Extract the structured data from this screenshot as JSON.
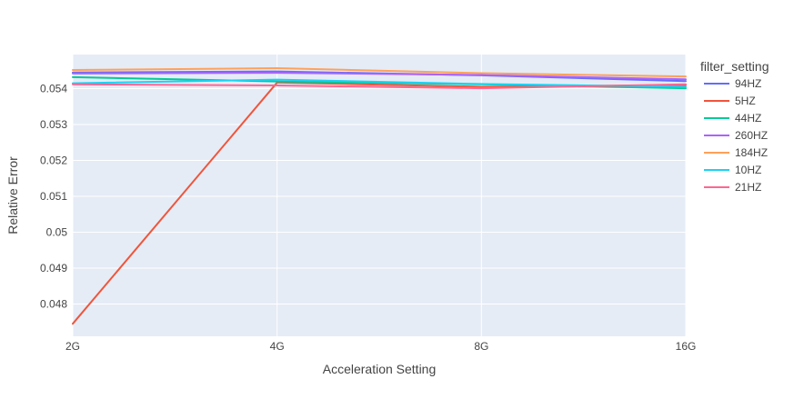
{
  "chart_data": {
    "type": "line",
    "xlabel": "Acceleration Setting",
    "ylabel": "Relative Error",
    "categories": [
      "2G",
      "4G",
      "8G",
      "16G"
    ],
    "ylim": [
      0.0471,
      0.05495
    ],
    "yticks": [
      0.048,
      0.049,
      0.05,
      0.051,
      0.052,
      0.053,
      0.054
    ],
    "ytick_labels": [
      "0.048",
      "0.049",
      "0.05",
      "0.051",
      "0.052",
      "0.053",
      "0.054"
    ],
    "legend": {
      "title": "filter_setting",
      "position": "right"
    },
    "grid": true,
    "series": [
      {
        "name": "94HZ",
        "color": "#636efa",
        "values": [
          0.05445,
          0.05448,
          0.05437,
          0.05421
        ]
      },
      {
        "name": "5HZ",
        "color": "#EF553B",
        "values": [
          0.04745,
          0.05417,
          0.05405,
          0.0541
        ]
      },
      {
        "name": "44HZ",
        "color": "#00cc96",
        "values": [
          0.05432,
          0.0542,
          0.05412,
          0.05401
        ]
      },
      {
        "name": "260HZ",
        "color": "#ab63fa",
        "values": [
          0.05442,
          0.05444,
          0.05438,
          0.05426
        ]
      },
      {
        "name": "184HZ",
        "color": "#FFA15A",
        "values": [
          0.05452,
          0.05457,
          0.05443,
          0.05434
        ]
      },
      {
        "name": "10HZ",
        "color": "#19d3f3",
        "values": [
          0.05415,
          0.05425,
          0.05413,
          0.05405
        ]
      },
      {
        "name": "21HZ",
        "color": "#FF6692",
        "values": [
          0.05412,
          0.05409,
          0.05401,
          0.05412
        ]
      }
    ]
  }
}
